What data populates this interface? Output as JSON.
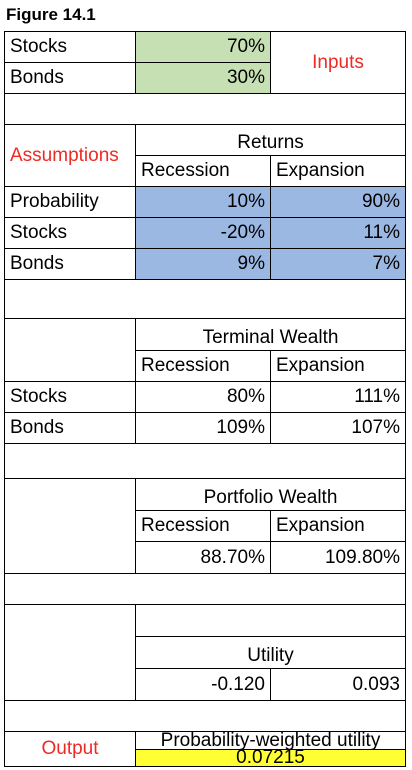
{
  "title": "Figure 14.1",
  "inputs": {
    "label": "Inputs",
    "stocks_label": "Stocks",
    "stocks_value": "70%",
    "bonds_label": "Bonds",
    "bonds_value": "30%"
  },
  "assumptions": {
    "label": "Assumptions",
    "header": "Returns",
    "col_recession": "Recession",
    "col_expansion": "Expansion",
    "rows": [
      {
        "label": "Probability",
        "recession": "10%",
        "expansion": "90%"
      },
      {
        "label": "Stocks",
        "recession": "-20%",
        "expansion": "11%"
      },
      {
        "label": "Bonds",
        "recession": "9%",
        "expansion": "7%"
      }
    ]
  },
  "terminal_wealth": {
    "header": "Terminal Wealth",
    "col_recession": "Recession",
    "col_expansion": "Expansion",
    "rows": [
      {
        "label": "Stocks",
        "recession": "80%",
        "expansion": "111%"
      },
      {
        "label": "Bonds",
        "recession": "109%",
        "expansion": "107%"
      }
    ]
  },
  "portfolio_wealth": {
    "header": "Portfolio Wealth",
    "col_recession": "Recession",
    "col_expansion": "Expansion",
    "recession": "88.70%",
    "expansion": "109.80%"
  },
  "utility": {
    "header": "Utility",
    "recession": "-0.120",
    "expansion": "0.093"
  },
  "output": {
    "label": "Output",
    "header": "Probability-weighted utility",
    "value": "0.07215"
  },
  "colors": {
    "input_fill": "#c6e0b4",
    "assumption_fill": "#9bb8e3",
    "output_fill": "#ffff33",
    "label_red": "#ee2a24"
  }
}
